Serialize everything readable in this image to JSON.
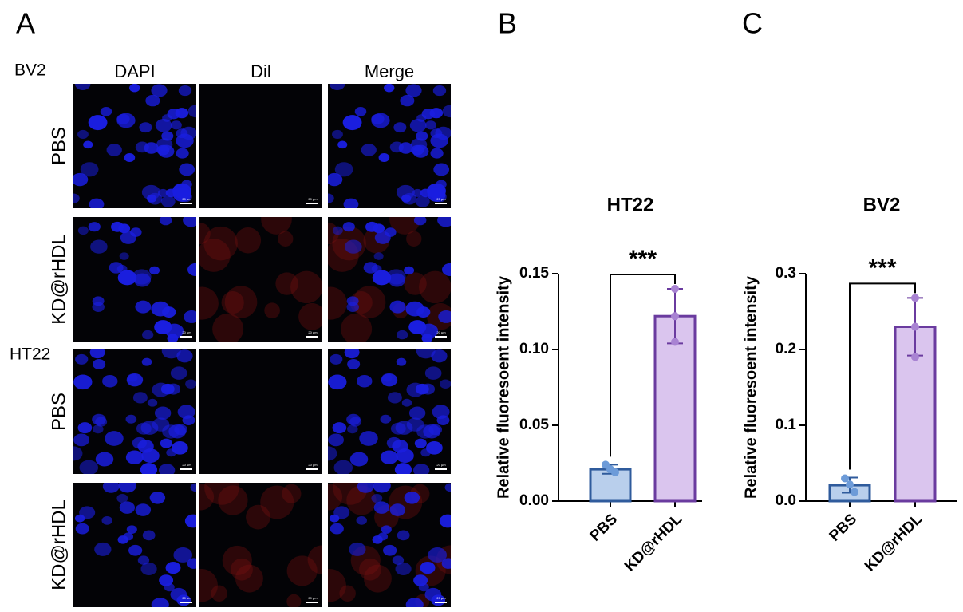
{
  "panel_labels": [
    "A",
    "B",
    "C"
  ],
  "microscopy": {
    "columns": [
      "DAPI",
      "Dil",
      "Merge"
    ],
    "groups": [
      {
        "label": "BV2",
        "rows": [
          "PBS",
          "KD@rHDL"
        ]
      },
      {
        "label": "HT22",
        "rows": [
          "PBS",
          "KD@rHDL"
        ]
      }
    ],
    "scale_bar": "20 μm"
  },
  "chart_data": [
    {
      "type": "bar",
      "title": "HT22",
      "ylabel": "Relative fluoresoent intensity",
      "categories": [
        "PBS",
        "KD@rHDL"
      ],
      "values": [
        0.021,
        0.122
      ],
      "errors": [
        0.003,
        0.018
      ],
      "points": [
        [
          0.024,
          0.021,
          0.019
        ],
        [
          0.14,
          0.122,
          0.105
        ]
      ],
      "fill_colors": [
        "#b9cfec",
        "#dac5ee"
      ],
      "edge_colors": [
        "#2f5b9c",
        "#6a3b9f"
      ],
      "point_colors": [
        "#6d9bd8",
        "#a883d2"
      ],
      "annotation": "***",
      "ylim": [
        0,
        0.15
      ],
      "yticks": [
        {
          "value": 0,
          "label": "0.00"
        },
        0.05,
        {
          "value": 0.1,
          "label": "0.10"
        },
        0.15
      ]
    },
    {
      "type": "bar",
      "title": "BV2",
      "ylabel": "Relative fluoresoent intensity",
      "categories": [
        "PBS",
        "KD@rHDL"
      ],
      "values": [
        0.021,
        0.23
      ],
      "errors": [
        0.01,
        0.038
      ],
      "points": [
        [
          0.03,
          0.022,
          0.012
        ],
        [
          0.268,
          0.23,
          0.19
        ]
      ],
      "fill_colors": [
        "#b9cfec",
        "#dac5ee"
      ],
      "edge_colors": [
        "#2f5b9c",
        "#6a3b9f"
      ],
      "point_colors": [
        "#6d9bd8",
        "#a883d2"
      ],
      "annotation": "***",
      "ylim": [
        0,
        0.3
      ],
      "yticks": [
        {
          "value": 0,
          "label": "0.0"
        },
        0.1,
        0.2,
        0.3
      ]
    }
  ]
}
